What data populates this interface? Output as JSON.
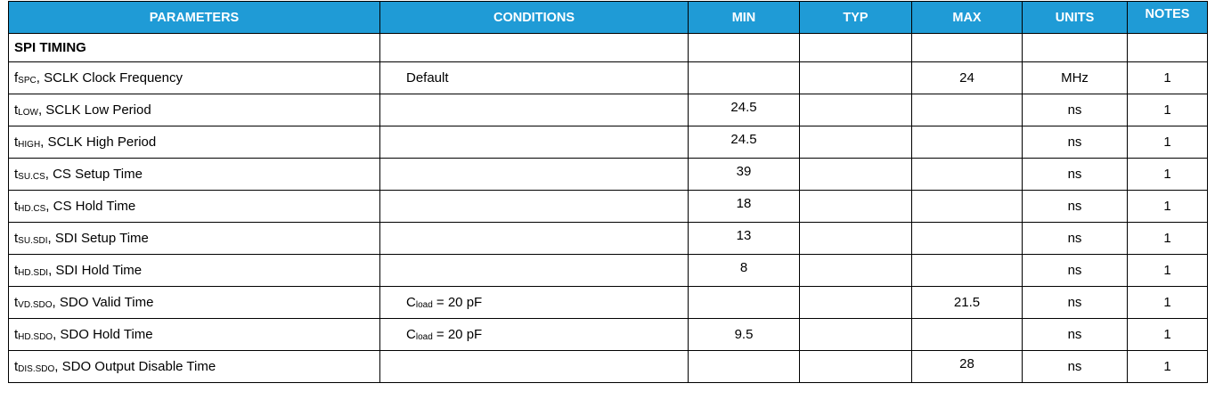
{
  "table": {
    "headers": {
      "parameters": "PARAMETERS",
      "conditions": "CONDITIONS",
      "min": "MIN",
      "typ": "TYP",
      "max": "MAX",
      "units": "UNITS",
      "notes": "NOTES"
    },
    "section": "SPI TIMING",
    "rows": [
      {
        "sym": "f",
        "sub": "SPC",
        "desc": ", SCLK Clock Frequency",
        "cond": "Default",
        "cond_sub": "",
        "cond_rest": "",
        "min": "",
        "typ": "",
        "max": "24",
        "units": "MHz",
        "notes": "1"
      },
      {
        "sym": "t",
        "sub": "LOW",
        "desc": ", SCLK Low Period",
        "cond": "",
        "cond_sub": "",
        "cond_rest": "",
        "min": "24.5",
        "typ": "",
        "max": "",
        "units": "ns",
        "notes": "1"
      },
      {
        "sym": "t",
        "sub": "HIGH",
        "desc": ", SCLK High Period",
        "cond": "",
        "cond_sub": "",
        "cond_rest": "",
        "min": "24.5",
        "typ": "",
        "max": "",
        "units": "ns",
        "notes": "1"
      },
      {
        "sym": "t",
        "sub": "SU.CS",
        "desc": ", CS Setup Time",
        "cond": "",
        "cond_sub": "",
        "cond_rest": "",
        "min": "39",
        "typ": "",
        "max": "",
        "units": "ns",
        "notes": "1"
      },
      {
        "sym": "t",
        "sub": "HD.CS",
        "desc": ", CS Hold Time",
        "cond": "",
        "cond_sub": "",
        "cond_rest": "",
        "min": "18",
        "typ": "",
        "max": "",
        "units": "ns",
        "notes": "1"
      },
      {
        "sym": "t",
        "sub": "SU.SDI",
        "desc": ", SDI Setup Time",
        "cond": "",
        "cond_sub": "",
        "cond_rest": "",
        "min": "13",
        "typ": "",
        "max": "",
        "units": "ns",
        "notes": "1"
      },
      {
        "sym": "t",
        "sub": "HD.SDI",
        "desc": ", SDI Hold Time",
        "cond": "",
        "cond_sub": "",
        "cond_rest": "",
        "min": "8",
        "typ": "",
        "max": "",
        "units": "ns",
        "notes": "1"
      },
      {
        "sym": "t",
        "sub": "VD.SDO",
        "desc": ", SDO Valid Time",
        "cond": "C",
        "cond_sub": "load",
        "cond_rest": " = 20 pF",
        "min": "",
        "typ": "",
        "max": "21.5",
        "units": "ns",
        "notes": "1"
      },
      {
        "sym": "t",
        "sub": "HD.SDO",
        "desc": ", SDO Hold Time",
        "cond": "C",
        "cond_sub": "load",
        "cond_rest": " = 20 pF",
        "min": "9.5",
        "typ": "",
        "max": "",
        "units": "ns",
        "notes": "1"
      },
      {
        "sym": "t",
        "sub": "DIS.SDO",
        "desc": ", SDO Output Disable Time",
        "cond": "",
        "cond_sub": "",
        "cond_rest": "",
        "min": "",
        "typ": "",
        "max": "28",
        "units": "ns",
        "notes": "1"
      }
    ]
  }
}
